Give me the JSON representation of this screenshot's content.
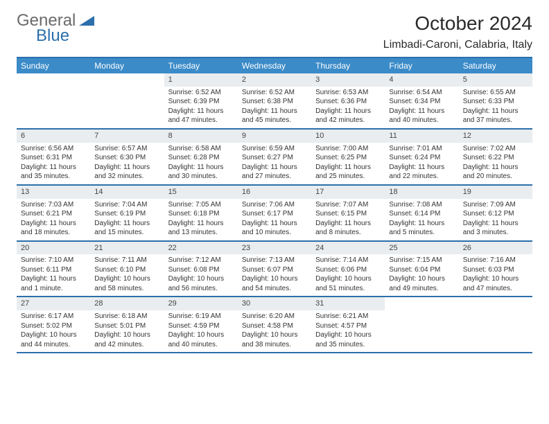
{
  "brand": {
    "part1": "General",
    "part2": "Blue"
  },
  "title": "October 2024",
  "location": "Limbadi-Caroni, Calabria, Italy",
  "colors": {
    "accent": "#2b6fab",
    "header_bg": "#3b8bc8",
    "daynum_bg": "#e9edef",
    "text": "#2a2a2a",
    "brand_gray": "#6a6a6a"
  },
  "weekdays": [
    "Sunday",
    "Monday",
    "Tuesday",
    "Wednesday",
    "Thursday",
    "Friday",
    "Saturday"
  ],
  "weeks": [
    [
      null,
      null,
      {
        "n": "1",
        "sr": "Sunrise: 6:52 AM",
        "ss": "Sunset: 6:39 PM",
        "d1": "Daylight: 11 hours",
        "d2": "and 47 minutes."
      },
      {
        "n": "2",
        "sr": "Sunrise: 6:52 AM",
        "ss": "Sunset: 6:38 PM",
        "d1": "Daylight: 11 hours",
        "d2": "and 45 minutes."
      },
      {
        "n": "3",
        "sr": "Sunrise: 6:53 AM",
        "ss": "Sunset: 6:36 PM",
        "d1": "Daylight: 11 hours",
        "d2": "and 42 minutes."
      },
      {
        "n": "4",
        "sr": "Sunrise: 6:54 AM",
        "ss": "Sunset: 6:34 PM",
        "d1": "Daylight: 11 hours",
        "d2": "and 40 minutes."
      },
      {
        "n": "5",
        "sr": "Sunrise: 6:55 AM",
        "ss": "Sunset: 6:33 PM",
        "d1": "Daylight: 11 hours",
        "d2": "and 37 minutes."
      }
    ],
    [
      {
        "n": "6",
        "sr": "Sunrise: 6:56 AM",
        "ss": "Sunset: 6:31 PM",
        "d1": "Daylight: 11 hours",
        "d2": "and 35 minutes."
      },
      {
        "n": "7",
        "sr": "Sunrise: 6:57 AM",
        "ss": "Sunset: 6:30 PM",
        "d1": "Daylight: 11 hours",
        "d2": "and 32 minutes."
      },
      {
        "n": "8",
        "sr": "Sunrise: 6:58 AM",
        "ss": "Sunset: 6:28 PM",
        "d1": "Daylight: 11 hours",
        "d2": "and 30 minutes."
      },
      {
        "n": "9",
        "sr": "Sunrise: 6:59 AM",
        "ss": "Sunset: 6:27 PM",
        "d1": "Daylight: 11 hours",
        "d2": "and 27 minutes."
      },
      {
        "n": "10",
        "sr": "Sunrise: 7:00 AM",
        "ss": "Sunset: 6:25 PM",
        "d1": "Daylight: 11 hours",
        "d2": "and 25 minutes."
      },
      {
        "n": "11",
        "sr": "Sunrise: 7:01 AM",
        "ss": "Sunset: 6:24 PM",
        "d1": "Daylight: 11 hours",
        "d2": "and 22 minutes."
      },
      {
        "n": "12",
        "sr": "Sunrise: 7:02 AM",
        "ss": "Sunset: 6:22 PM",
        "d1": "Daylight: 11 hours",
        "d2": "and 20 minutes."
      }
    ],
    [
      {
        "n": "13",
        "sr": "Sunrise: 7:03 AM",
        "ss": "Sunset: 6:21 PM",
        "d1": "Daylight: 11 hours",
        "d2": "and 18 minutes."
      },
      {
        "n": "14",
        "sr": "Sunrise: 7:04 AM",
        "ss": "Sunset: 6:19 PM",
        "d1": "Daylight: 11 hours",
        "d2": "and 15 minutes."
      },
      {
        "n": "15",
        "sr": "Sunrise: 7:05 AM",
        "ss": "Sunset: 6:18 PM",
        "d1": "Daylight: 11 hours",
        "d2": "and 13 minutes."
      },
      {
        "n": "16",
        "sr": "Sunrise: 7:06 AM",
        "ss": "Sunset: 6:17 PM",
        "d1": "Daylight: 11 hours",
        "d2": "and 10 minutes."
      },
      {
        "n": "17",
        "sr": "Sunrise: 7:07 AM",
        "ss": "Sunset: 6:15 PM",
        "d1": "Daylight: 11 hours",
        "d2": "and 8 minutes."
      },
      {
        "n": "18",
        "sr": "Sunrise: 7:08 AM",
        "ss": "Sunset: 6:14 PM",
        "d1": "Daylight: 11 hours",
        "d2": "and 5 minutes."
      },
      {
        "n": "19",
        "sr": "Sunrise: 7:09 AM",
        "ss": "Sunset: 6:12 PM",
        "d1": "Daylight: 11 hours",
        "d2": "and 3 minutes."
      }
    ],
    [
      {
        "n": "20",
        "sr": "Sunrise: 7:10 AM",
        "ss": "Sunset: 6:11 PM",
        "d1": "Daylight: 11 hours",
        "d2": "and 1 minute."
      },
      {
        "n": "21",
        "sr": "Sunrise: 7:11 AM",
        "ss": "Sunset: 6:10 PM",
        "d1": "Daylight: 10 hours",
        "d2": "and 58 minutes."
      },
      {
        "n": "22",
        "sr": "Sunrise: 7:12 AM",
        "ss": "Sunset: 6:08 PM",
        "d1": "Daylight: 10 hours",
        "d2": "and 56 minutes."
      },
      {
        "n": "23",
        "sr": "Sunrise: 7:13 AM",
        "ss": "Sunset: 6:07 PM",
        "d1": "Daylight: 10 hours",
        "d2": "and 54 minutes."
      },
      {
        "n": "24",
        "sr": "Sunrise: 7:14 AM",
        "ss": "Sunset: 6:06 PM",
        "d1": "Daylight: 10 hours",
        "d2": "and 51 minutes."
      },
      {
        "n": "25",
        "sr": "Sunrise: 7:15 AM",
        "ss": "Sunset: 6:04 PM",
        "d1": "Daylight: 10 hours",
        "d2": "and 49 minutes."
      },
      {
        "n": "26",
        "sr": "Sunrise: 7:16 AM",
        "ss": "Sunset: 6:03 PM",
        "d1": "Daylight: 10 hours",
        "d2": "and 47 minutes."
      }
    ],
    [
      {
        "n": "27",
        "sr": "Sunrise: 6:17 AM",
        "ss": "Sunset: 5:02 PM",
        "d1": "Daylight: 10 hours",
        "d2": "and 44 minutes."
      },
      {
        "n": "28",
        "sr": "Sunrise: 6:18 AM",
        "ss": "Sunset: 5:01 PM",
        "d1": "Daylight: 10 hours",
        "d2": "and 42 minutes."
      },
      {
        "n": "29",
        "sr": "Sunrise: 6:19 AM",
        "ss": "Sunset: 4:59 PM",
        "d1": "Daylight: 10 hours",
        "d2": "and 40 minutes."
      },
      {
        "n": "30",
        "sr": "Sunrise: 6:20 AM",
        "ss": "Sunset: 4:58 PM",
        "d1": "Daylight: 10 hours",
        "d2": "and 38 minutes."
      },
      {
        "n": "31",
        "sr": "Sunrise: 6:21 AM",
        "ss": "Sunset: 4:57 PM",
        "d1": "Daylight: 10 hours",
        "d2": "and 35 minutes."
      },
      null,
      null
    ]
  ]
}
